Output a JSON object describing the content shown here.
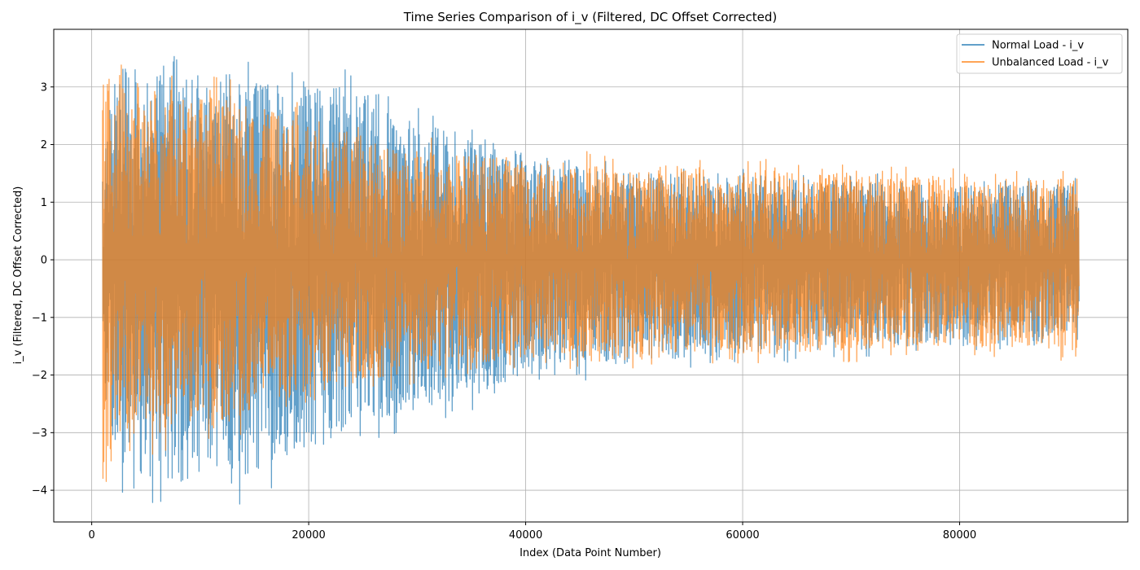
{
  "chart_data": {
    "type": "line",
    "title": "Time Series Comparison of i_v (Filtered, DC Offset Corrected)",
    "xlabel": "Index (Data Point Number)",
    "ylabel": "i_v (Filtered, DC Offset Corrected)",
    "xlim": [
      -3500,
      95500
    ],
    "ylim": [
      -4.55,
      4.0
    ],
    "xticks": [
      0,
      20000,
      40000,
      60000,
      80000
    ],
    "xtick_labels": [
      "0",
      "20000",
      "40000",
      "60000",
      "80000"
    ],
    "yticks": [
      -4,
      -3,
      -2,
      -1,
      0,
      1,
      2,
      3
    ],
    "ytick_labels": [
      "−4",
      "−3",
      "−2",
      "−1",
      "0",
      "1",
      "2",
      "3"
    ],
    "grid": true,
    "legend_position": "top-right",
    "series": [
      {
        "name": "Normal Load - i_v",
        "color": "#1f77b4",
        "alpha": 0.7,
        "envelope": {
          "x": [
            1000,
            3000,
            5000,
            8000,
            10000,
            13000,
            16000,
            20000,
            24000,
            28000,
            32000,
            36000,
            40000,
            45000,
            50000,
            55000,
            60000,
            65000,
            70000,
            75000,
            80000,
            85000,
            91000
          ],
          "upper": [
            2.4,
            3.4,
            3.2,
            3.5,
            3.0,
            3.3,
            3.1,
            3.1,
            3.0,
            2.5,
            2.3,
            2.0,
            1.7,
            1.6,
            1.5,
            1.5,
            1.5,
            1.4,
            1.4,
            1.3,
            1.3,
            1.3,
            1.3
          ],
          "lower": [
            -2.8,
            -3.7,
            -3.8,
            -3.8,
            -3.5,
            -3.9,
            -3.6,
            -3.3,
            -2.9,
            -2.7,
            -2.5,
            -2.3,
            -2.0,
            -1.9,
            -1.8,
            -1.7,
            -1.6,
            -1.6,
            -1.5,
            -1.5,
            -1.4,
            -1.4,
            -1.3
          ]
        }
      },
      {
        "name": "Unbalanced Load - i_v",
        "color": "#ff7f0e",
        "alpha": 0.7,
        "envelope": {
          "x": [
            1000,
            3000,
            5000,
            8000,
            10000,
            13000,
            16000,
            20000,
            24000,
            28000,
            32000,
            36000,
            40000,
            45000,
            50000,
            55000,
            60000,
            65000,
            70000,
            75000,
            80000,
            85000,
            91000
          ],
          "upper": [
            3.3,
            3.0,
            3.1,
            2.9,
            2.8,
            2.9,
            2.6,
            2.4,
            2.2,
            1.9,
            1.9,
            1.8,
            1.8,
            1.7,
            1.6,
            1.6,
            1.6,
            1.5,
            1.5,
            1.5,
            1.4,
            1.4,
            1.4
          ],
          "lower": [
            -3.9,
            -3.0,
            -3.1,
            -2.9,
            -2.8,
            -2.8,
            -2.6,
            -2.5,
            -2.2,
            -2.0,
            -1.9,
            -1.8,
            -1.7,
            -1.7,
            -1.7,
            -1.6,
            -1.6,
            -1.6,
            -1.6,
            -1.5,
            -1.5,
            -1.5,
            -1.6
          ]
        }
      }
    ]
  }
}
